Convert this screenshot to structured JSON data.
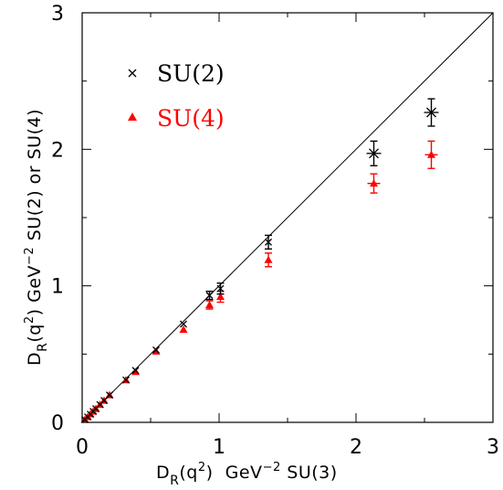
{
  "chart_data": {
    "type": "scatter",
    "title": "",
    "xlim": [
      0,
      3
    ],
    "ylim": [
      0,
      3
    ],
    "x_ticks": [
      "0",
      "1",
      "2",
      "3"
    ],
    "y_ticks": [
      "0",
      "1",
      "2",
      "3"
    ],
    "xlabel": {
      "main": "D",
      "sub": "R",
      "q": "(q",
      "sup": "2",
      "close": ")",
      "rest": "  GeV",
      "exp": "−2",
      "tail": " SU(3)"
    },
    "ylabel": {
      "main": "D",
      "sub": "R",
      "q": "(q",
      "sup": "2",
      "close": ")",
      "rest": " GeV",
      "exp": "−2",
      "tail": " SU(2) or SU(4)"
    },
    "reference_line": "y = x",
    "legend_position": "top-left",
    "series": [
      {
        "name": "SU(2)",
        "marker": "cross",
        "color": "#000000",
        "points": [
          {
            "x": 0.02,
            "y": 0.02,
            "err": 0.0
          },
          {
            "x": 0.04,
            "y": 0.04,
            "err": 0.0
          },
          {
            "x": 0.06,
            "y": 0.06,
            "err": 0.0
          },
          {
            "x": 0.08,
            "y": 0.08,
            "err": 0.0
          },
          {
            "x": 0.1,
            "y": 0.1,
            "err": 0.0
          },
          {
            "x": 0.13,
            "y": 0.13,
            "err": 0.0
          },
          {
            "x": 0.16,
            "y": 0.16,
            "err": 0.0
          },
          {
            "x": 0.2,
            "y": 0.2,
            "err": 0.01
          },
          {
            "x": 0.32,
            "y": 0.31,
            "err": 0.01
          },
          {
            "x": 0.39,
            "y": 0.38,
            "err": 0.01
          },
          {
            "x": 0.54,
            "y": 0.53,
            "err": 0.01
          },
          {
            "x": 0.74,
            "y": 0.72,
            "err": 0.02
          },
          {
            "x": 0.93,
            "y": 0.93,
            "err": 0.03
          },
          {
            "x": 1.01,
            "y": 0.98,
            "err": 0.04
          },
          {
            "x": 1.36,
            "y": 1.32,
            "err": 0.05
          },
          {
            "x": 2.13,
            "y": 1.97,
            "err": 0.09
          },
          {
            "x": 2.55,
            "y": 2.27,
            "err": 0.1
          }
        ]
      },
      {
        "name": "SU(4)",
        "marker": "triangle",
        "color": "#ff0000",
        "points": [
          {
            "x": 0.02,
            "y": 0.02,
            "err": 0.0
          },
          {
            "x": 0.04,
            "y": 0.04,
            "err": 0.0
          },
          {
            "x": 0.06,
            "y": 0.06,
            "err": 0.0
          },
          {
            "x": 0.08,
            "y": 0.08,
            "err": 0.0
          },
          {
            "x": 0.1,
            "y": 0.1,
            "err": 0.0
          },
          {
            "x": 0.13,
            "y": 0.13,
            "err": 0.0
          },
          {
            "x": 0.16,
            "y": 0.16,
            "err": 0.0
          },
          {
            "x": 0.2,
            "y": 0.2,
            "err": 0.01
          },
          {
            "x": 0.32,
            "y": 0.31,
            "err": 0.01
          },
          {
            "x": 0.39,
            "y": 0.37,
            "err": 0.01
          },
          {
            "x": 0.54,
            "y": 0.52,
            "err": 0.01
          },
          {
            "x": 0.74,
            "y": 0.68,
            "err": 0.02
          },
          {
            "x": 0.93,
            "y": 0.86,
            "err": 0.03
          },
          {
            "x": 1.01,
            "y": 0.92,
            "err": 0.04
          },
          {
            "x": 1.36,
            "y": 1.19,
            "err": 0.05
          },
          {
            "x": 2.13,
            "y": 1.75,
            "err": 0.07
          },
          {
            "x": 2.55,
            "y": 1.96,
            "err": 0.1
          }
        ]
      }
    ]
  }
}
